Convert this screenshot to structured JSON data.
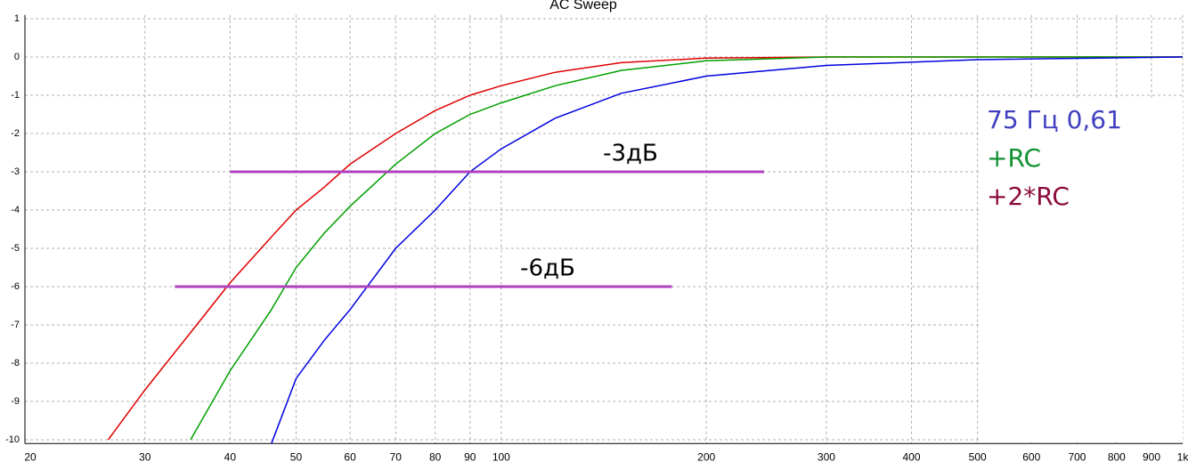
{
  "chart_data": {
    "type": "line",
    "title": "AC Sweep",
    "x": [
      26.5,
      30,
      35,
      40,
      46,
      50,
      55,
      60,
      70,
      80,
      90,
      100,
      120,
      150,
      200,
      300,
      500,
      1000
    ],
    "series": [
      {
        "name": "+2*RC",
        "color": "#e00000",
        "label_color": "#8b0a3c",
        "values": [
          -10.0,
          -8.7,
          -7.2,
          -5.9,
          -4.7,
          -4.0,
          -3.4,
          -2.8,
          -2.0,
          -1.4,
          -1.0,
          -0.75,
          -0.4,
          -0.15,
          -0.03,
          0,
          0,
          0
        ]
      },
      {
        "name": "+RC",
        "color": "#00a000",
        "label_color": "#109030",
        "values": [
          null,
          null,
          -10.0,
          -8.2,
          -6.6,
          -5.5,
          -4.6,
          -3.9,
          -2.8,
          -2.0,
          -1.5,
          -1.2,
          -0.75,
          -0.35,
          -0.1,
          0,
          0,
          0
        ]
      },
      {
        "name": "75 Гц 0,61",
        "color": "#0000e0",
        "label_color": "#4040c0",
        "values": [
          null,
          null,
          null,
          null,
          -10.1,
          -8.4,
          -7.4,
          -6.6,
          -5.0,
          -4.0,
          -3.0,
          -2.4,
          -1.6,
          -0.95,
          -0.5,
          -0.22,
          -0.07,
          0
        ]
      }
    ],
    "xlim": [
      20,
      1000
    ],
    "xscale": "log",
    "xticks": [
      20,
      30,
      40,
      50,
      60,
      70,
      80,
      90,
      100,
      200,
      300,
      400,
      500,
      600,
      700,
      800,
      900,
      {
        "value": 1000,
        "label": "1k"
      }
    ],
    "ylim": [
      -10.1,
      1.1
    ],
    "yticks": [
      1,
      0,
      -1,
      -2,
      -3,
      -4,
      -5,
      -6,
      -7,
      -8,
      -9,
      -10
    ],
    "grid": true,
    "reference_lines": [
      {
        "y": -3,
        "x": [
          40,
          243
        ],
        "label": "-3дБ",
        "color": "#b040c0"
      },
      {
        "y": -6,
        "x": [
          33.2,
          178
        ],
        "label": "-6дБ",
        "color": "#b040c0"
      }
    ]
  }
}
